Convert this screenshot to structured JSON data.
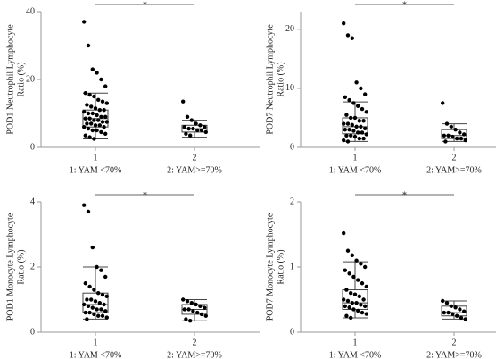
{
  "chart_data": [
    {
      "type": "box",
      "ylabel": [
        "POD1 Neutrophil Lymphocyte",
        "Ratio (%)"
      ],
      "categories": [
        "1",
        "2"
      ],
      "group_labels": [
        "1: YAM <70%",
        "2: YAM>=70%"
      ],
      "significance": "*",
      "ylim": [
        0,
        40
      ],
      "yticks": [
        0,
        20,
        40
      ],
      "boxes": [
        {
          "whisker_low": 2.5,
          "q1": 6,
          "median": 8.5,
          "q3": 11,
          "whisker_high": 16,
          "points": [
            37,
            30,
            23,
            22,
            20,
            18,
            16,
            15.5,
            15,
            14,
            13.5,
            13,
            12.5,
            12,
            11.5,
            11,
            11,
            10.5,
            10,
            10,
            9.5,
            9,
            9,
            8.5,
            8.5,
            8,
            8,
            7.5,
            7.5,
            7,
            7,
            6.5,
            6.5,
            6,
            6,
            5.5,
            5,
            5,
            4.5,
            4,
            3.5,
            3,
            2.5
          ]
        },
        {
          "whisker_low": 3,
          "q1": 4.5,
          "median": 5.5,
          "q3": 6.5,
          "whisker_high": 8,
          "points": [
            13.5,
            9,
            8,
            7,
            6.5,
            6,
            6,
            5.5,
            5.5,
            5,
            5,
            4.5,
            4,
            3.5
          ]
        }
      ]
    },
    {
      "type": "box",
      "ylabel": [
        "POD7 Neutrophil Lymphocyte",
        "Ratio (%)"
      ],
      "categories": [
        "1",
        "2"
      ],
      "group_labels": [
        "1: YAM <70%",
        "2: YAM>=70%"
      ],
      "significance": "*",
      "ylim": [
        0,
        23
      ],
      "yticks": [
        0,
        10,
        20
      ],
      "boxes": [
        {
          "whisker_low": 1,
          "q1": 2.3,
          "median": 3.5,
          "q3": 5,
          "whisker_high": 7.7,
          "points": [
            21,
            19,
            18.5,
            11,
            10,
            9,
            8.5,
            8,
            7.5,
            7,
            6.5,
            6,
            5.5,
            5,
            5,
            4.5,
            4.5,
            4,
            4,
            3.8,
            3.5,
            3.5,
            3.2,
            3,
            3,
            2.8,
            2.5,
            2.5,
            2.2,
            2,
            2,
            1.8,
            1.5,
            1.5,
            1.2,
            1
          ]
        },
        {
          "whisker_low": 1,
          "q1": 1.5,
          "median": 2,
          "q3": 3,
          "whisker_high": 4,
          "points": [
            7.5,
            4,
            3.5,
            3,
            2.5,
            2.2,
            2,
            2,
            1.8,
            1.5,
            1.5,
            1.2,
            1
          ]
        }
      ]
    },
    {
      "type": "box",
      "ylabel": [
        "POD1 Monocyte Lymphocyte",
        "Ratio (%)"
      ],
      "categories": [
        "1",
        "2"
      ],
      "group_labels": [
        "1: YAM <70%",
        "2: YAM>=70%"
      ],
      "significance": "*",
      "ylim": [
        0,
        4
      ],
      "yticks": [
        0,
        2,
        4
      ],
      "boxes": [
        {
          "whisker_low": 0.4,
          "q1": 0.6,
          "median": 0.85,
          "q3": 1.2,
          "whisker_high": 2.0,
          "points": [
            3.9,
            3.7,
            2.6,
            2.0,
            1.9,
            1.7,
            1.5,
            1.4,
            1.3,
            1.2,
            1.15,
            1.1,
            1.0,
            1.0,
            0.95,
            0.9,
            0.85,
            0.85,
            0.8,
            0.75,
            0.7,
            0.7,
            0.65,
            0.6,
            0.6,
            0.55,
            0.5,
            0.5,
            0.45,
            0.4
          ]
        },
        {
          "whisker_low": 0.35,
          "q1": 0.55,
          "median": 0.7,
          "q3": 0.85,
          "whisker_high": 1.0,
          "points": [
            1.0,
            0.95,
            0.9,
            0.85,
            0.8,
            0.75,
            0.7,
            0.7,
            0.65,
            0.6,
            0.55,
            0.5,
            0.4,
            0.35
          ]
        }
      ]
    },
    {
      "type": "box",
      "ylabel": [
        "POD7 Monocyte Lymphocyte",
        "Ratio (%)"
      ],
      "categories": [
        "1",
        "2"
      ],
      "group_labels": [
        "1: YAM <70%",
        "2: YAM>=70%"
      ],
      "significance": "*",
      "ylim": [
        0,
        2
      ],
      "yticks": [
        0,
        1,
        2
      ],
      "boxes": [
        {
          "whisker_low": 0.22,
          "q1": 0.35,
          "median": 0.45,
          "q3": 0.65,
          "whisker_high": 1.08,
          "points": [
            1.52,
            1.25,
            1.18,
            1.1,
            1.05,
            1.0,
            0.95,
            0.9,
            0.85,
            0.8,
            0.75,
            0.7,
            0.65,
            0.6,
            0.58,
            0.55,
            0.5,
            0.5,
            0.48,
            0.45,
            0.45,
            0.42,
            0.4,
            0.4,
            0.38,
            0.35,
            0.33,
            0.3,
            0.28,
            0.25,
            0.22
          ]
        },
        {
          "whisker_low": 0.2,
          "q1": 0.25,
          "median": 0.3,
          "q3": 0.4,
          "whisker_high": 0.48,
          "points": [
            0.48,
            0.45,
            0.4,
            0.38,
            0.35,
            0.32,
            0.3,
            0.3,
            0.28,
            0.25,
            0.22,
            0.2
          ]
        }
      ]
    }
  ]
}
